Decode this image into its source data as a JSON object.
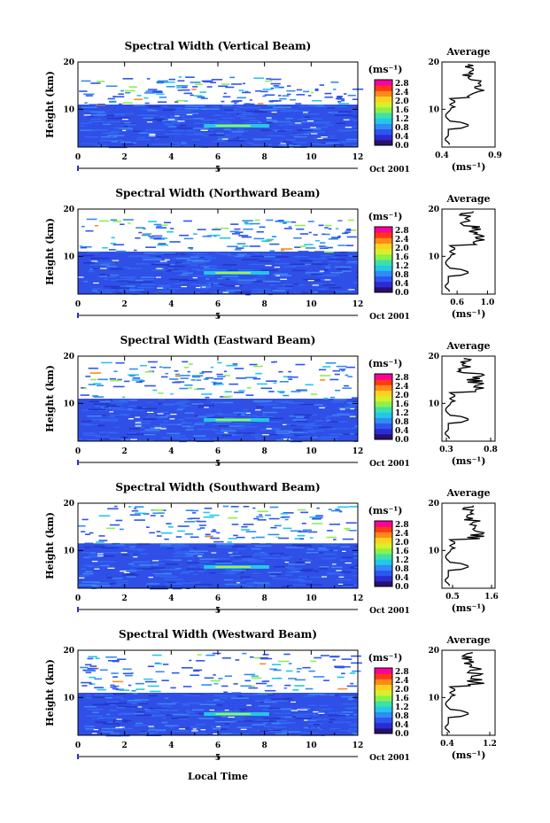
{
  "figure": {
    "xlabel": "Local Time",
    "colorbar": {
      "unit": "(ms⁻¹)",
      "ticks": [
        "0.0",
        "0.4",
        "0.8",
        "1.2",
        "1.6",
        "2.0",
        "2.4",
        "2.8"
      ],
      "colors": [
        "#2a0f6e",
        "#2b2bd6",
        "#2f55f0",
        "#2f8cf5",
        "#22c8e8",
        "#3fe0a8",
        "#8cf04a",
        "#d8f02a",
        "#ffd020",
        "#ff8a1a",
        "#ff3a12",
        "#ff00a0"
      ]
    },
    "date_label": "Oct 2001",
    "avg_title": "Average",
    "avg_xlabel": "(ms⁻¹)"
  },
  "chart_data": [
    {
      "type": "heatmap",
      "title": "Spectral Width (Vertical Beam)",
      "ylabel": "Height (km)",
      "x_ticks": [
        "0",
        "2",
        "4",
        "6",
        "8",
        "10",
        "12"
      ],
      "x_sublabel": "5",
      "y_ticks": [
        "10",
        "20"
      ],
      "xlim": [
        0,
        12
      ],
      "ylim": [
        2,
        20
      ],
      "echo_top_km": 17,
      "dense_top_km": 11,
      "avg": {
        "title": "Average",
        "xlim": [
          0.4,
          0.9
        ],
        "x_ticks": [
          "0.4",
          "0.9"
        ],
        "y_ticks": [
          "10",
          "20"
        ]
      }
    },
    {
      "type": "heatmap",
      "title": "Spectral Width (Northward Beam)",
      "ylabel": "Height (km)",
      "x_ticks": [
        "0",
        "2",
        "4",
        "6",
        "8",
        "10",
        "12"
      ],
      "x_sublabel": "5",
      "y_ticks": [
        "10",
        "20"
      ],
      "xlim": [
        0,
        12
      ],
      "ylim": [
        2,
        20
      ],
      "echo_top_km": 18,
      "dense_top_km": 11,
      "avg": {
        "title": "Average",
        "xlim": [
          0.4,
          1.1
        ],
        "x_ticks": [
          "0.6",
          "1.0"
        ],
        "y_ticks": [
          "10",
          "20"
        ]
      }
    },
    {
      "type": "heatmap",
      "title": "Spectral Width (Eastward Beam)",
      "ylabel": "Height (km)",
      "x_ticks": [
        "0",
        "2",
        "4",
        "6",
        "8",
        "10",
        "12"
      ],
      "x_sublabel": "5",
      "y_ticks": [
        "10",
        "20"
      ],
      "xlim": [
        0,
        12
      ],
      "ylim": [
        2,
        20
      ],
      "echo_top_km": 19,
      "dense_top_km": 11,
      "avg": {
        "title": "Average",
        "xlim": [
          0.25,
          0.85
        ],
        "x_ticks": [
          "0.3",
          "0.8"
        ],
        "y_ticks": [
          "10",
          "20"
        ]
      }
    },
    {
      "type": "heatmap",
      "title": "Spectral Width (Southward Beam)",
      "ylabel": "Height (km)",
      "x_ticks": [
        "0",
        "2",
        "4",
        "6",
        "8",
        "10",
        "12"
      ],
      "x_sublabel": "5",
      "y_ticks": [
        "10",
        "20"
      ],
      "xlim": [
        0,
        12
      ],
      "ylim": [
        2,
        20
      ],
      "echo_top_km": 19.5,
      "dense_top_km": 11.5,
      "avg": {
        "title": "Average",
        "xlim": [
          0.2,
          1.7
        ],
        "x_ticks": [
          "0.5",
          "1.6"
        ],
        "y_ticks": [
          "10",
          "20"
        ]
      }
    },
    {
      "type": "heatmap",
      "title": "Spectral Width (Westward Beam)",
      "ylabel": "Height (km)",
      "x_ticks": [
        "0",
        "2",
        "4",
        "6",
        "8",
        "10",
        "12"
      ],
      "x_sublabel": "5",
      "y_ticks": [
        "10",
        "20"
      ],
      "xlim": [
        0,
        12
      ],
      "ylim": [
        2,
        20
      ],
      "echo_top_km": 19.5,
      "dense_top_km": 11,
      "avg": {
        "title": "Average",
        "xlim": [
          0.3,
          1.3
        ],
        "x_ticks": [
          "0.4",
          "1.2"
        ],
        "y_ticks": [
          "10",
          "20"
        ]
      }
    }
  ]
}
